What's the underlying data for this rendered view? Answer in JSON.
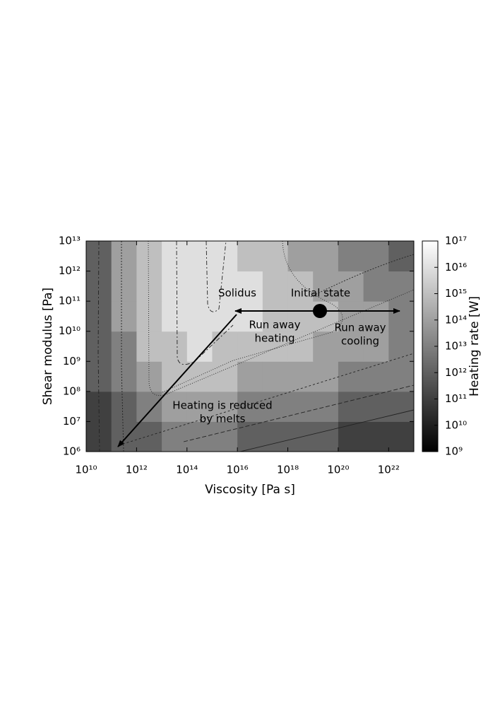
{
  "chart_data": {
    "type": "heatmap",
    "x_label": "Viscosity [Pa s]",
    "y_label": "Shear modulus [Pa]",
    "colorbar_label": "Heating rate [W]",
    "log_x": true,
    "log_y": true,
    "log_z": true,
    "xlim": [
      10000000000.0,
      1e+23
    ],
    "ylim": [
      1000000.0,
      10000000000000.0
    ],
    "zlim": [
      1000000000.0,
      1e+17
    ],
    "x_edges": [
      10000000000.0,
      100000000000.0,
      1000000000000.0,
      10000000000000.0,
      100000000000000.0,
      1000000000000000.0,
      1e+16,
      1e+17,
      1e+18,
      1e+19,
      1e+20,
      1e+21,
      1e+22,
      1e+23
    ],
    "y_edges": [
      1000000.0,
      10000000.0,
      100000000.0,
      1000000000.0,
      10000000000.0,
      100000000000.0,
      1000000000000.0,
      10000000000000.0
    ],
    "z": [
      [
        100000000000.0,
        1000000000000.0,
        1000000000000.0,
        10000000000000.0,
        10000000000000.0,
        10000000000000.0,
        1000000000000.0,
        1000000000000.0,
        1000000000000.0,
        1000000000000.0,
        100000000000.0,
        100000000000.0,
        100000000000.0
      ],
      [
        100000000000.0,
        1000000000000.0,
        10000000000000.0,
        100000000000000.0,
        100000000000000.0,
        100000000000000.0,
        10000000000000.0,
        10000000000000.0,
        10000000000000.0,
        10000000000000.0,
        1000000000000.0,
        1000000000000.0,
        1000000000000.0
      ],
      [
        1000000000000.0,
        10000000000000.0,
        100000000000000.0,
        1000000000000000.0,
        1000000000000000.0,
        1000000000000000.0,
        100000000000000.0,
        100000000000000.0,
        100000000000000.0,
        100000000000000.0,
        10000000000000.0,
        10000000000000.0,
        10000000000000.0
      ],
      [
        1000000000000.0,
        10000000000000.0,
        1000000000000000.0,
        1000000000000000.0,
        1e+16,
        1000000000000000.0,
        1000000000000000.0,
        1000000000000000.0,
        1000000000000000.0,
        100000000000000.0,
        100000000000000.0,
        100000000000000.0,
        10000000000000.0
      ],
      [
        1000000000000.0,
        100000000000000.0,
        1000000000000000.0,
        1e+16,
        1e+16,
        1e+16,
        1e+16,
        1000000000000000.0,
        1000000000000000.0,
        1000000000000000.0,
        100000000000000.0,
        100000000000000.0,
        10000000000000.0
      ],
      [
        1000000000000.0,
        100000000000000.0,
        1000000000000000.0,
        1e+16,
        1e+16,
        1e+16,
        1e+16,
        1000000000000000.0,
        1000000000000000.0,
        100000000000000.0,
        100000000000000.0,
        10000000000000.0,
        10000000000000.0
      ],
      [
        1000000000000.0,
        100000000000000.0,
        1000000000000000.0,
        1e+16,
        1e+16,
        1e+16,
        1000000000000000.0,
        1000000000000000.0,
        100000000000000.0,
        100000000000000.0,
        10000000000000.0,
        10000000000000.0,
        1000000000000.0
      ]
    ],
    "xticks": [
      {
        "value": 10000000000.0,
        "label": "10¹⁰"
      },
      {
        "value": 1000000000000.0,
        "label": "10¹²"
      },
      {
        "value": 100000000000000.0,
        "label": "10¹⁴"
      },
      {
        "value": 1e+16,
        "label": "10¹⁶"
      },
      {
        "value": 1e+18,
        "label": "10¹⁸"
      },
      {
        "value": 1e+20,
        "label": "10²⁰"
      },
      {
        "value": 1e+22,
        "label": "10²²"
      }
    ],
    "yticks": [
      {
        "value": 1000000.0,
        "label": "10⁶"
      },
      {
        "value": 10000000.0,
        "label": "10⁷"
      },
      {
        "value": 100000000.0,
        "label": "10⁸"
      },
      {
        "value": 1000000000.0,
        "label": "10⁹"
      },
      {
        "value": 10000000000.0,
        "label": "10¹⁰"
      },
      {
        "value": 100000000000.0,
        "label": "10¹¹"
      },
      {
        "value": 1000000000000.0,
        "label": "10¹²"
      },
      {
        "value": 10000000000000.0,
        "label": "10¹³"
      }
    ],
    "zticks": [
      {
        "value": 1000000000.0,
        "label": "10⁹"
      },
      {
        "value": 10000000000.0,
        "label": "10¹⁰"
      },
      {
        "value": 100000000000.0,
        "label": "10¹¹"
      },
      {
        "value": 1000000000000.0,
        "label": "10¹²"
      },
      {
        "value": 10000000000000.0,
        "label": "10¹³"
      },
      {
        "value": 100000000000000.0,
        "label": "10¹⁴"
      },
      {
        "value": 1000000000000000.0,
        "label": "10¹⁵"
      },
      {
        "value": 1e+16,
        "label": "10¹⁶"
      },
      {
        "value": 1e+17,
        "label": "10¹⁷"
      }
    ],
    "annotations": [
      {
        "lines": [
          "Solidus"
        ]
      },
      {
        "lines": [
          "Initial state"
        ]
      },
      {
        "lines": [
          "Run away",
          "heating"
        ]
      },
      {
        "lines": [
          "Run away",
          "cooling"
        ]
      },
      {
        "lines": [
          "Heating is reduced",
          "by melts"
        ]
      }
    ]
  }
}
